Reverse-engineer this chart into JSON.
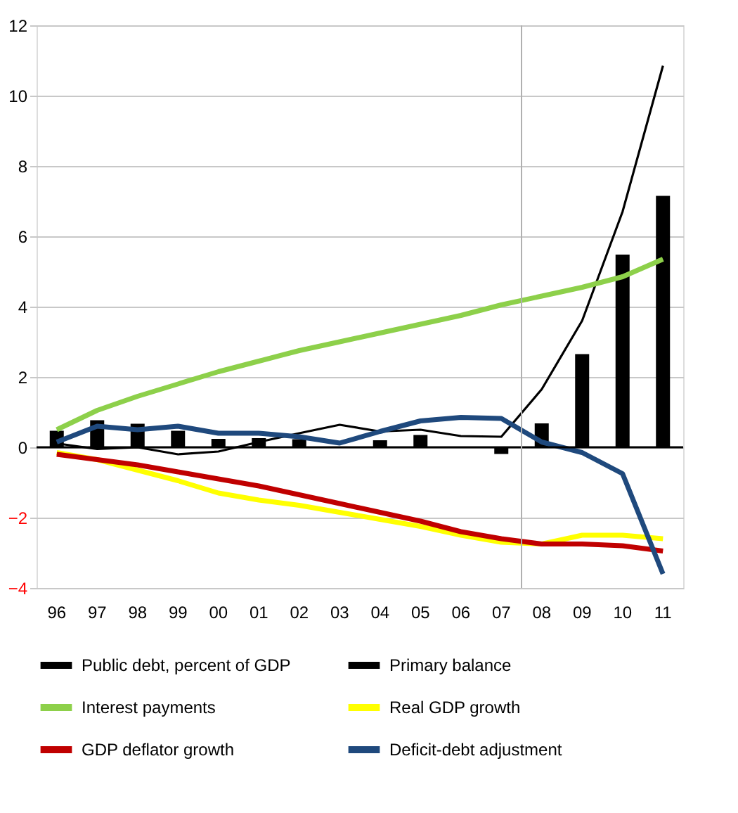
{
  "chart_data": {
    "type": "line",
    "categories": [
      "96",
      "97",
      "98",
      "99",
      "00",
      "01",
      "02",
      "03",
      "04",
      "05",
      "06",
      "07",
      "08",
      "09",
      "10",
      "11"
    ],
    "series": [
      {
        "name": "Public debt, percent of GDP",
        "type": "bar",
        "color": "#000000",
        "values": [
          0.47,
          0.77,
          0.67,
          0.47,
          0.24,
          0.26,
          0.23,
          null,
          0.2,
          0.35,
          null,
          -0.19,
          0.68,
          2.65,
          5.48,
          7.15
        ]
      },
      {
        "name": "Primary balance",
        "color": "#000000",
        "values": [
          0.11,
          -0.05,
          0.0,
          -0.2,
          -0.12,
          0.15,
          0.4,
          0.64,
          0.45,
          0.5,
          0.32,
          0.3,
          1.65,
          3.6,
          6.7,
          10.85
        ]
      },
      {
        "name": "Interest payments",
        "color": "#8dd04a",
        "values": [
          0.5,
          1.05,
          1.45,
          1.8,
          2.15,
          2.45,
          2.75,
          3.0,
          3.25,
          3.5,
          3.75,
          4.05,
          4.3,
          4.55,
          4.85,
          5.35
        ]
      },
      {
        "name": "Real GDP growth",
        "color": "#ffff00",
        "values": [
          -0.15,
          -0.35,
          -0.65,
          -0.95,
          -1.3,
          -1.5,
          -1.65,
          -1.85,
          -2.05,
          -2.25,
          -2.5,
          -2.7,
          -2.75,
          -2.5,
          -2.5,
          -2.6
        ]
      },
      {
        "name": "GDP deflator growth",
        "color": "#c00000",
        "values": [
          -0.2,
          -0.35,
          -0.5,
          -0.7,
          -0.9,
          -1.1,
          -1.35,
          -1.6,
          -1.85,
          -2.1,
          -2.4,
          -2.6,
          -2.75,
          -2.75,
          -2.8,
          -2.95
        ]
      },
      {
        "name": "Deficit-debt adjustment",
        "color": "#1f497d",
        "values": [
          0.15,
          0.6,
          0.5,
          0.6,
          0.4,
          0.4,
          0.3,
          0.12,
          0.45,
          0.75,
          0.85,
          0.82,
          0.15,
          -0.15,
          -0.75,
          -3.6
        ]
      }
    ],
    "ylim": [
      -4,
      12
    ],
    "yticks": [
      -4,
      -2,
      0,
      2,
      4,
      6,
      8,
      10,
      12
    ],
    "ref_lines": [
      {
        "axis": "x",
        "value": "08",
        "color": "#b0b0b0"
      }
    ],
    "grid": "y",
    "legend": "bottom",
    "marker": "none",
    "line_style": "solid"
  }
}
